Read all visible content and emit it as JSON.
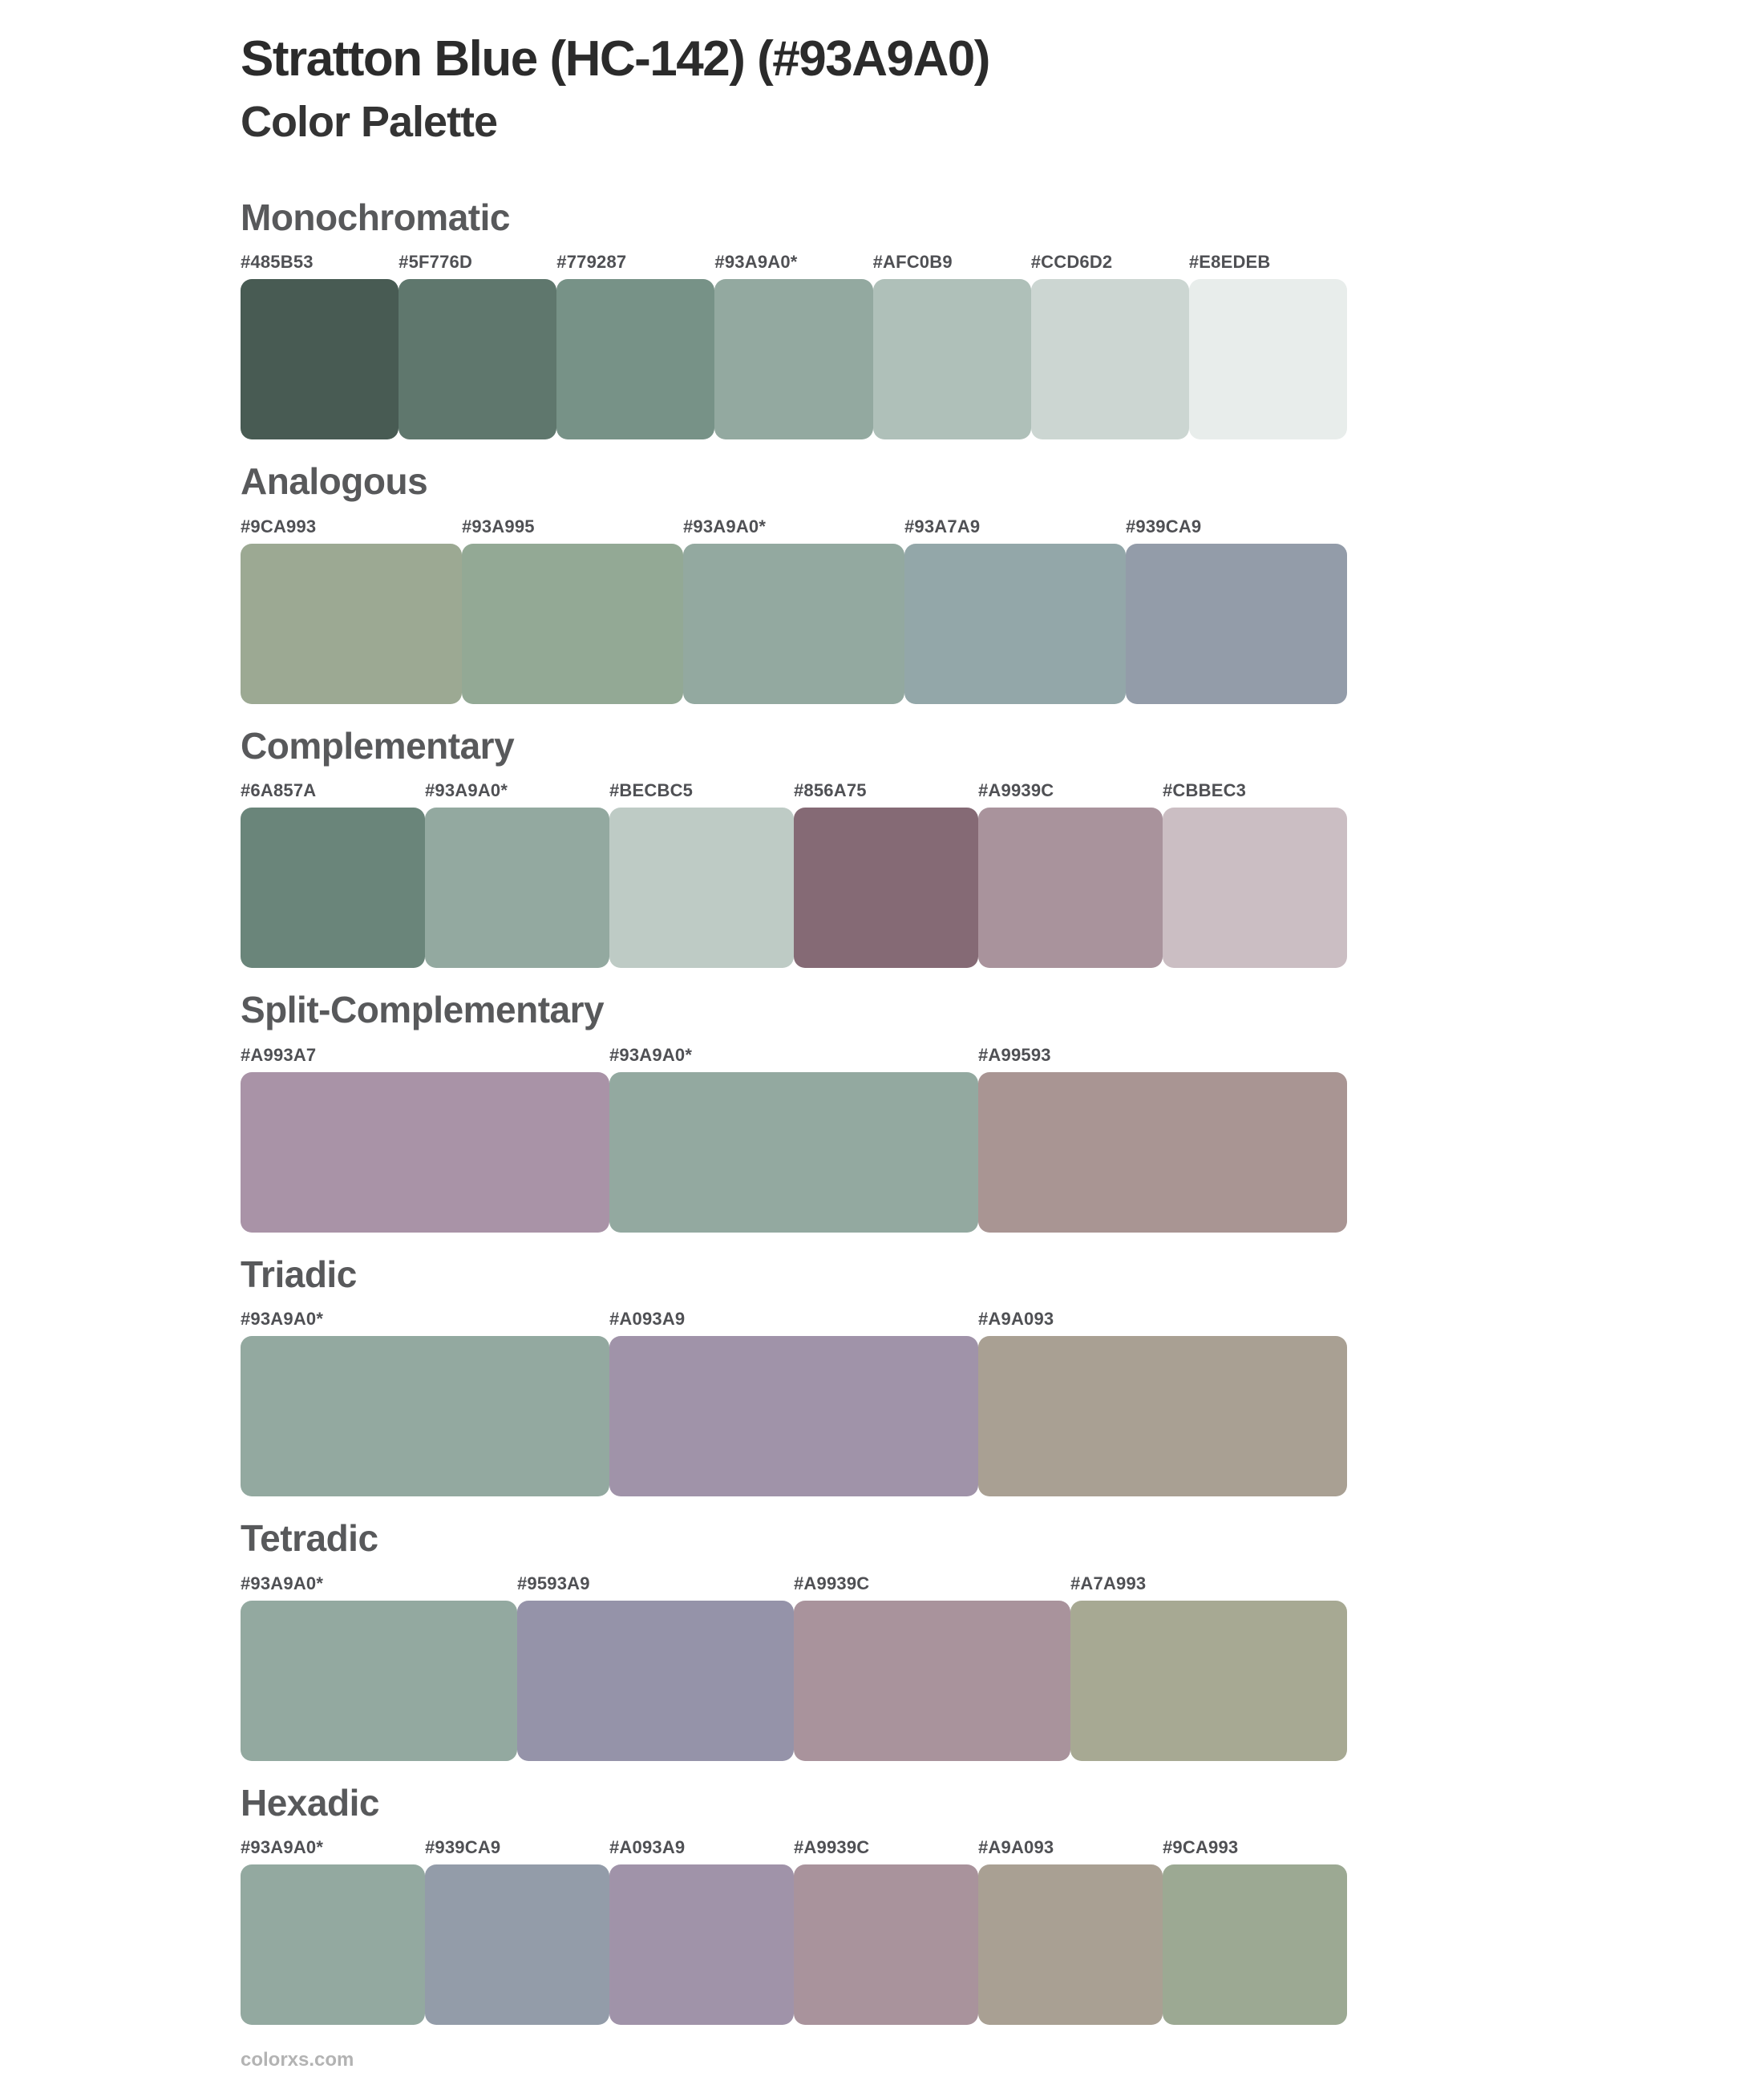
{
  "page": {
    "title": "Stratton Blue (HC-142) (#93A9A0)",
    "subtitle": "Color Palette",
    "base_color": "#93A9A0",
    "footer_link": "colorxs.com"
  },
  "sections": [
    {
      "name": "Monochromatic",
      "swatches": [
        {
          "label": "#485B53",
          "hex": "#485B53"
        },
        {
          "label": "#5F776D",
          "hex": "#5F776D"
        },
        {
          "label": "#779287",
          "hex": "#779287"
        },
        {
          "label": "#93A9A0*",
          "hex": "#93A9A0"
        },
        {
          "label": "#AFC0B9",
          "hex": "#AFC0B9"
        },
        {
          "label": "#CCD6D2",
          "hex": "#CCD6D2"
        },
        {
          "label": "#E8EDEB",
          "hex": "#E8EDEB"
        }
      ]
    },
    {
      "name": "Analogous",
      "swatches": [
        {
          "label": "#9CA993",
          "hex": "#9CA993"
        },
        {
          "label": "#93A995",
          "hex": "#93A995"
        },
        {
          "label": "#93A9A0*",
          "hex": "#93A9A0"
        },
        {
          "label": "#93A7A9",
          "hex": "#93A7A9"
        },
        {
          "label": "#939CA9",
          "hex": "#939CA9"
        }
      ]
    },
    {
      "name": "Complementary",
      "swatches": [
        {
          "label": "#6A857A",
          "hex": "#6A857A"
        },
        {
          "label": "#93A9A0*",
          "hex": "#93A9A0"
        },
        {
          "label": "#BECBC5",
          "hex": "#BECBC5"
        },
        {
          "label": "#856A75",
          "hex": "#856A75"
        },
        {
          "label": "#A9939C",
          "hex": "#A9939C"
        },
        {
          "label": "#CBBEC3",
          "hex": "#CBBEC3"
        }
      ]
    },
    {
      "name": "Split-Complementary",
      "swatches": [
        {
          "label": "#A993A7",
          "hex": "#A993A7"
        },
        {
          "label": "#93A9A0*",
          "hex": "#93A9A0"
        },
        {
          "label": "#A99593",
          "hex": "#A99593"
        }
      ]
    },
    {
      "name": "Triadic",
      "swatches": [
        {
          "label": "#93A9A0*",
          "hex": "#93A9A0"
        },
        {
          "label": "#A093A9",
          "hex": "#A093A9"
        },
        {
          "label": "#A9A093",
          "hex": "#A9A093"
        }
      ]
    },
    {
      "name": "Tetradic",
      "swatches": [
        {
          "label": "#93A9A0*",
          "hex": "#93A9A0"
        },
        {
          "label": "#9593A9",
          "hex": "#9593A9"
        },
        {
          "label": "#A9939C",
          "hex": "#A9939C"
        },
        {
          "label": "#A7A993",
          "hex": "#A7A993"
        }
      ]
    },
    {
      "name": "Hexadic",
      "swatches": [
        {
          "label": "#93A9A0*",
          "hex": "#93A9A0"
        },
        {
          "label": "#939CA9",
          "hex": "#939CA9"
        },
        {
          "label": "#A093A9",
          "hex": "#A093A9"
        },
        {
          "label": "#A9939C",
          "hex": "#A9939C"
        },
        {
          "label": "#A9A093",
          "hex": "#A9A093"
        },
        {
          "label": "#9CA993",
          "hex": "#9CA993"
        }
      ]
    }
  ]
}
